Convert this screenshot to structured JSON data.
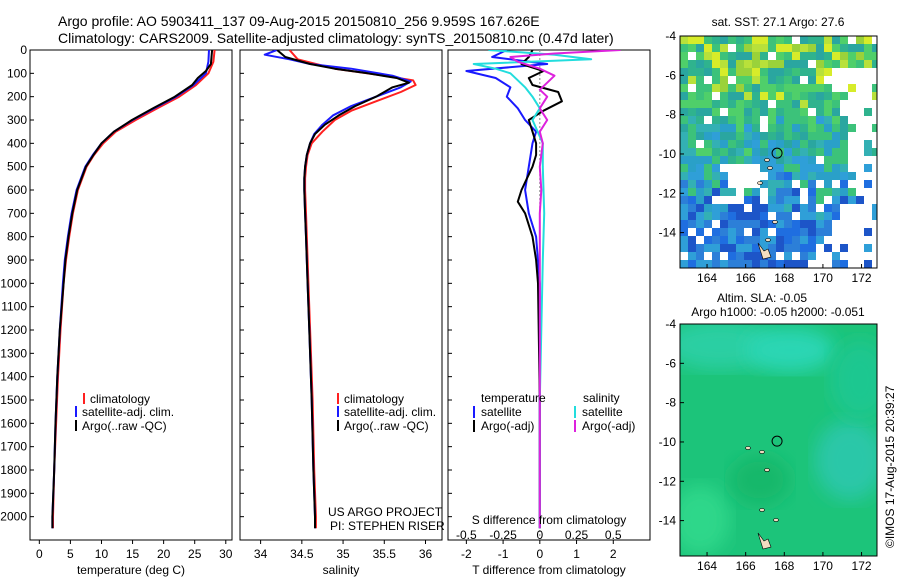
{
  "title": {
    "line1": "Argo profile: AO 5903411_137 09-Aug-2015 20150810_256 9.959S 167.626E",
    "line2": "Climatology: CARS2009. Satellite-adjusted climatology: synTS_20150810.nc (0.47d later)"
  },
  "credits": {
    "project": "US ARGO PROJECT",
    "pi": "PI: STEPHEN RISER",
    "stamp": "©IMOS 17-Aug-2015 20:39:27"
  },
  "colors": {
    "climatology": "#ff2020",
    "satellite": "#1a1aff",
    "argo": "#000000",
    "sal_satellite": "#22dddd",
    "sal_argo": "#dd22dd"
  },
  "chart_data": [
    {
      "type": "line",
      "xlabel": "temperature (deg C)",
      "ylabel": "",
      "xlim": [
        -1.5,
        31
      ],
      "ylim": [
        2100,
        0
      ],
      "xticks": [
        "0",
        "5",
        "10",
        "15",
        "20",
        "25",
        "30"
      ],
      "xtick_values": [
        0,
        5,
        10,
        15,
        20,
        25,
        30
      ],
      "yticks": [
        "0",
        "100",
        "200",
        "300",
        "400",
        "500",
        "600",
        "700",
        "800",
        "900",
        "1000",
        "1100",
        "1200",
        "1300",
        "1400",
        "1500",
        "1600",
        "1700",
        "1800",
        "1900",
        "2000"
      ],
      "legend": [
        "climatology",
        "satellite-adj. clim.",
        "Argo(..raw -QC)"
      ],
      "legend_placement": "lower-center",
      "series": [
        {
          "name": "climatology",
          "color": "#ff2020",
          "depth": [
            0,
            50,
            100,
            150,
            200,
            250,
            300,
            350,
            400,
            450,
            500,
            600,
            700,
            800,
            900,
            1000,
            1200,
            1400,
            1600,
            1800,
            2000,
            2050
          ],
          "values": [
            28.2,
            28.0,
            27.2,
            25.2,
            22.5,
            19.0,
            15.5,
            12.3,
            10.3,
            8.8,
            7.6,
            6.2,
            5.4,
            4.8,
            4.3,
            3.9,
            3.4,
            3.0,
            2.7,
            2.4,
            2.2,
            2.2
          ]
        },
        {
          "name": "satellite-adj. clim.",
          "color": "#1a1aff",
          "depth": [
            0,
            50,
            100,
            150,
            200,
            250,
            300,
            350,
            400,
            450,
            500,
            600,
            700,
            800,
            900,
            1000,
            1200,
            1400,
            1600,
            1800,
            2000,
            2050
          ],
          "values": [
            27.3,
            27.2,
            26.8,
            24.8,
            22.0,
            18.5,
            15.0,
            12.0,
            10.0,
            8.6,
            7.4,
            6.0,
            5.2,
            4.6,
            4.1,
            3.8,
            3.3,
            2.9,
            2.6,
            2.4,
            2.1,
            2.1
          ]
        },
        {
          "name": "Argo(..raw -QC)",
          "color": "#000000",
          "depth": [
            0,
            30,
            60,
            90,
            120,
            150,
            200,
            250,
            300,
            350,
            400,
            450,
            500,
            600,
            700,
            800,
            900,
            1000,
            1200,
            1400,
            1600,
            1800,
            2000,
            2050
          ],
          "values": [
            27.8,
            27.7,
            27.6,
            26.8,
            25.5,
            24.6,
            21.8,
            18.3,
            14.9,
            12.0,
            10.0,
            8.7,
            7.5,
            6.1,
            5.3,
            4.7,
            4.2,
            3.9,
            3.3,
            2.9,
            2.6,
            2.4,
            2.1,
            2.1
          ]
        }
      ]
    },
    {
      "type": "line",
      "xlabel": "salinity",
      "ylabel": "",
      "xlim": [
        33.75,
        36.2
      ],
      "ylim": [
        2100,
        0
      ],
      "xticks": [
        "34",
        "34.5",
        "35",
        "35.5",
        "36"
      ],
      "xtick_values": [
        34,
        34.5,
        35,
        35.5,
        36
      ],
      "legend": [
        "climatology",
        "satellite-adj. clim.",
        "Argo(..raw -QC)"
      ],
      "legend_placement": "lower-right",
      "series": [
        {
          "name": "climatology",
          "color": "#ff2020",
          "depth": [
            0,
            40,
            80,
            110,
            130,
            150,
            180,
            220,
            260,
            300,
            350,
            400,
            450,
            500,
            550,
            600,
            700,
            800,
            1000,
            1200,
            1500,
            1800,
            2000,
            2050
          ],
          "values": [
            34.35,
            34.45,
            34.9,
            35.5,
            35.85,
            35.88,
            35.7,
            35.4,
            35.1,
            34.9,
            34.75,
            34.62,
            34.57,
            34.55,
            34.54,
            34.54,
            34.55,
            34.56,
            34.58,
            34.6,
            34.63,
            34.65,
            34.67,
            34.67
          ]
        },
        {
          "name": "satellite-adj. clim.",
          "color": "#1a1aff",
          "depth": [
            0,
            20,
            40,
            60,
            80,
            110,
            135,
            160,
            200,
            240,
            280,
            320,
            360,
            400,
            450,
            500,
            550,
            600,
            700,
            800,
            1000,
            1200,
            1500,
            1800,
            2000,
            2050
          ],
          "values": [
            34.2,
            34.05,
            34.35,
            34.6,
            35.1,
            35.6,
            35.82,
            35.7,
            35.4,
            35.1,
            34.88,
            34.75,
            34.65,
            34.6,
            34.56,
            34.54,
            34.53,
            34.53,
            34.54,
            34.55,
            34.57,
            34.59,
            34.62,
            34.64,
            34.66,
            34.66
          ]
        },
        {
          "name": "Argo(..raw -QC)",
          "color": "#000000",
          "depth": [
            0,
            30,
            60,
            80,
            100,
            120,
            140,
            160,
            200,
            240,
            280,
            320,
            360,
            400,
            450,
            500,
            550,
            600,
            700,
            800,
            1000,
            1200,
            1500,
            1800,
            2000,
            2050
          ],
          "values": [
            34.2,
            34.3,
            34.6,
            34.9,
            35.3,
            35.65,
            35.8,
            35.6,
            35.4,
            35.15,
            34.95,
            34.78,
            34.66,
            34.6,
            34.56,
            34.54,
            34.53,
            34.53,
            34.54,
            34.55,
            34.57,
            34.59,
            34.62,
            34.64,
            34.66,
            34.66
          ]
        }
      ]
    },
    {
      "type": "line",
      "xlabel": "T difference from climatology",
      "xlabel_top": "S difference from climatology",
      "xlim": [
        -2.5,
        3
      ],
      "ylim": [
        2100,
        0
      ],
      "xticks": [
        "-2",
        "-1",
        "0",
        "1",
        "2"
      ],
      "xtick_values": [
        -2,
        -1,
        0,
        1,
        2
      ],
      "xticks_s": [
        "-0.5",
        "-0.25",
        "0",
        "0.25",
        "0.5"
      ],
      "xtick_values_s": [
        -0.5,
        -0.25,
        0,
        0.25,
        0.5
      ],
      "legend_temperature_title": "temperature",
      "legend_salinity_title": "salinity",
      "legend": [
        "satellite",
        "Argo(-adj)",
        "satellite",
        "Argo(-adj)"
      ],
      "series": [
        {
          "name": "satellite",
          "color": "#1a1aff",
          "depth": [
            0,
            30,
            60,
            90,
            120,
            160,
            200,
            250,
            300,
            350,
            400,
            500,
            600,
            700,
            800,
            1000,
            1500,
            2000,
            2050
          ],
          "values": [
            -0.9,
            -1.3,
            0.2,
            -2.0,
            -1.2,
            -0.8,
            -0.9,
            -0.6,
            -0.4,
            -0.1,
            -0.2,
            -0.3,
            -0.4,
            -0.3,
            -0.1,
            0.0,
            0.0,
            0.0,
            0.0
          ]
        },
        {
          "name": "Argo(-adj)",
          "color": "#000000",
          "depth": [
            0,
            30,
            60,
            90,
            120,
            150,
            180,
            220,
            260,
            300,
            350,
            400,
            450,
            500,
            550,
            600,
            650,
            700,
            800,
            900,
            1000,
            1500,
            2000,
            2050
          ],
          "values": [
            -0.2,
            -0.3,
            -0.5,
            0.1,
            -0.3,
            -0.2,
            0.5,
            0.6,
            0.1,
            -0.3,
            -0.2,
            -0.1,
            -0.1,
            -0.2,
            -0.35,
            -0.5,
            -0.6,
            -0.4,
            -0.2,
            -0.1,
            -0.05,
            0.0,
            0.0,
            0.0
          ]
        },
        {
          "name": "satellite",
          "color": "#22dddd",
          "depth": [
            0,
            20,
            40,
            60,
            80,
            100,
            130,
            160,
            200,
            250,
            300,
            400,
            500,
            700,
            900,
            1200,
            1500,
            2000,
            2050
          ],
          "values": [
            -0.35,
            0.1,
            0.35,
            -0.45,
            -0.3,
            -0.2,
            -0.15,
            -0.1,
            -0.05,
            0.0,
            -0.05,
            0.02,
            0.02,
            0.03,
            0.02,
            0.01,
            0.0,
            0.0,
            0.0
          ]
        },
        {
          "name": "Argo(-adj)",
          "color": "#dd22dd",
          "depth": [
            0,
            15,
            30,
            50,
            80,
            110,
            140,
            170,
            200,
            250,
            300,
            350,
            400,
            500,
            600,
            700,
            800,
            1000,
            1500,
            2000,
            2050
          ],
          "values": [
            0.55,
            0.1,
            -0.2,
            -0.15,
            0.0,
            0.1,
            0.05,
            0.0,
            0.05,
            0.0,
            0.05,
            0.0,
            0.02,
            0.0,
            0.01,
            0.0,
            0.0,
            0.0,
            0.0,
            0.0,
            0.0
          ]
        }
      ]
    },
    {
      "type": "heatmap",
      "title": "sat. SST: 27.1  Argo: 27.6",
      "xticks": [
        "164",
        "166",
        "168",
        "170",
        "172"
      ],
      "yticks": [
        "-4",
        "-6",
        "-8",
        "-10",
        "-12",
        "-14"
      ],
      "xlim": [
        162.6,
        172.8
      ],
      "ylim": [
        -15.8,
        -4
      ],
      "marker": {
        "lon": 167.626,
        "lat": -9.959
      }
    },
    {
      "type": "heatmap",
      "title_line1": "Altim. SLA: -0.05",
      "title_line2": "Argo h1000: -0.05 h2000: -0.051",
      "xticks": [
        "164",
        "166",
        "168",
        "170",
        "172"
      ],
      "yticks": [
        "-4",
        "-6",
        "-8",
        "-10",
        "-12",
        "-14"
      ],
      "xlim": [
        162.6,
        172.8
      ],
      "ylim": [
        -15.8,
        -4
      ],
      "marker": {
        "lon": 167.626,
        "lat": -9.959
      }
    }
  ]
}
